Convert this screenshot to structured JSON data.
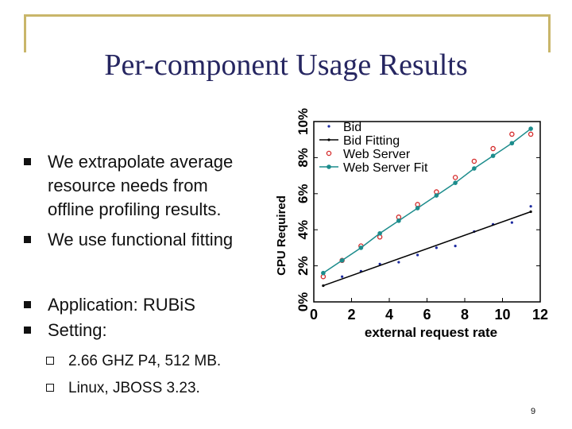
{
  "slide": {
    "title": "Per-component Usage Results",
    "bullets": [
      {
        "lines": [
          "We extrapolate average",
          "resource needs from",
          "offline profiling results."
        ]
      },
      {
        "lines": [
          "We use functional fitting"
        ]
      },
      {
        "lines": [
          "Application: RUBiS"
        ]
      },
      {
        "lines": [
          "Setting:"
        ]
      }
    ],
    "sub_bullets": [
      "2.66 GHZ P4, 512 MB.",
      "Linux, JBOSS 3.23."
    ],
    "page_number": "9"
  },
  "colors": {
    "accent_line": "#c9b66a",
    "title": "#262661",
    "bid": "#1c2aa0",
    "web": "#d42a2a",
    "web_fit": "#1c8c8c",
    "bid_fit": "#000000"
  },
  "chart_data": {
    "type": "scatter",
    "xlabel": "external request rate",
    "ylabel": "CPU Required",
    "xlim": [
      0,
      12
    ],
    "ylim": [
      0,
      10
    ],
    "xticks": [
      "0",
      "2",
      "4",
      "6",
      "8",
      "10",
      "12"
    ],
    "yticks": [
      "0%",
      "2%",
      "4%",
      "6%",
      "8%",
      "10%"
    ],
    "legend_position": "top-left",
    "series": [
      {
        "name": "Bid",
        "kind": "points",
        "x": [
          0.5,
          1.5,
          2.5,
          3.5,
          4.5,
          5.5,
          6.5,
          7.5,
          8.5,
          9.5,
          10.5,
          11.5
        ],
        "y": [
          1.6,
          1.4,
          1.7,
          2.1,
          2.2,
          2.6,
          3.0,
          3.1,
          3.9,
          4.3,
          4.4,
          5.3
        ]
      },
      {
        "name": "Bid Fitting",
        "kind": "line",
        "x": [
          0.5,
          11.5
        ],
        "y": [
          0.9,
          5.0
        ]
      },
      {
        "name": "Web Server",
        "kind": "points",
        "x": [
          0.5,
          1.5,
          2.5,
          3.5,
          4.5,
          5.5,
          6.5,
          7.5,
          8.5,
          9.5,
          10.5,
          11.5
        ],
        "y": [
          1.4,
          2.3,
          3.1,
          3.6,
          4.7,
          5.4,
          6.1,
          6.9,
          7.8,
          8.5,
          9.3,
          9.3
        ]
      },
      {
        "name": "Web Server Fit",
        "kind": "line-markers",
        "x": [
          0.5,
          1.5,
          2.5,
          3.5,
          4.5,
          5.5,
          6.5,
          7.5,
          8.5,
          9.5,
          10.5,
          11.5
        ],
        "y": [
          1.6,
          2.3,
          3.0,
          3.8,
          4.5,
          5.2,
          5.9,
          6.6,
          7.4,
          8.1,
          8.8,
          9.6
        ]
      }
    ]
  }
}
